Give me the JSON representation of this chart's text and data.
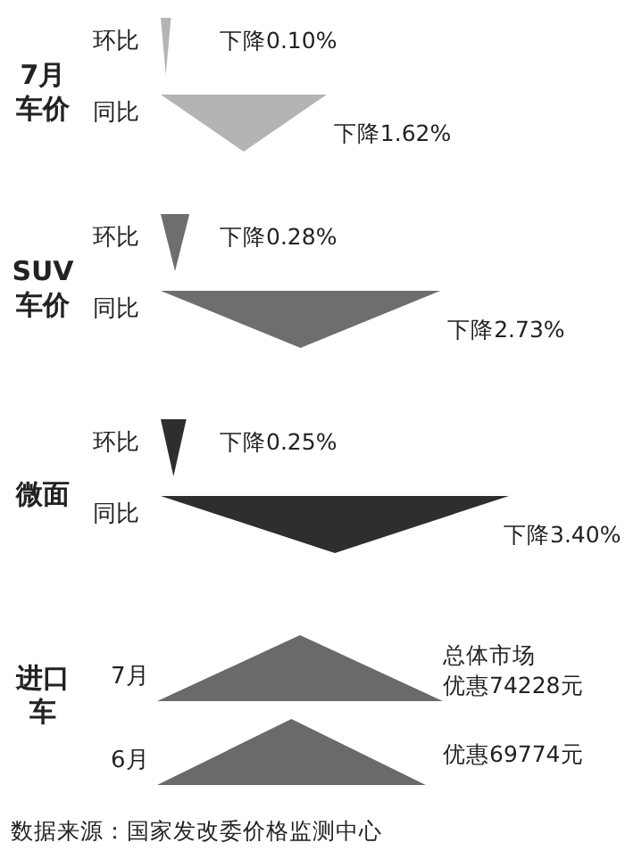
{
  "chart_data": [
    {
      "type": "other",
      "title": "7月车价",
      "categories": [
        "环比",
        "同比"
      ],
      "values": [
        0.1,
        1.62
      ],
      "value_labels": [
        "下降0.10%",
        "下降1.62%"
      ],
      "color": "#b4b4b4"
    },
    {
      "type": "other",
      "title": "SUV车价",
      "categories": [
        "环比",
        "同比"
      ],
      "values": [
        0.28,
        2.73
      ],
      "value_labels": [
        "下降0.28%",
        "下降2.73%"
      ],
      "color": "#6e6e6e"
    },
    {
      "type": "other",
      "title": "微面",
      "categories": [
        "环比",
        "同比"
      ],
      "values": [
        0.25,
        3.4
      ],
      "value_labels": [
        "下降0.25%",
        "下降3.40%"
      ],
      "color": "#2e2e2e"
    },
    {
      "type": "other",
      "title": "进口车",
      "categories": [
        "7月",
        "6月"
      ],
      "values": [
        74228,
        69774
      ],
      "value_labels": [
        "总体市场优惠74228元",
        "优惠69774元"
      ],
      "color": "#6a6a6a",
      "annotations": [
        "数据来源：国家发改委价格监测中心"
      ]
    }
  ]
}
